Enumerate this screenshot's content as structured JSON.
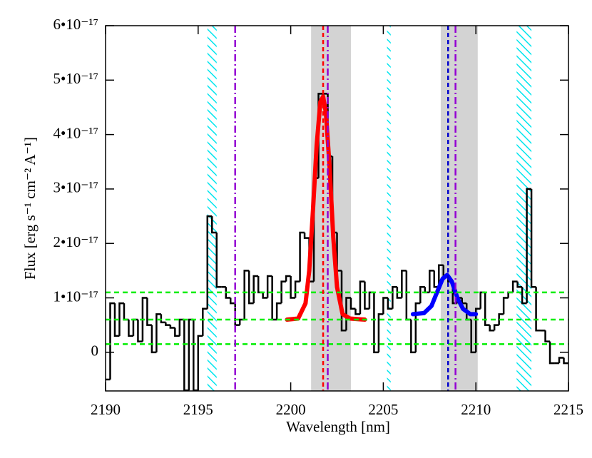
{
  "chart_data": {
    "type": "histogram",
    "xlabel": "Wavelength [nm]",
    "ylabel": "Flux [erg s⁻¹ cm⁻² A⁻¹]",
    "xlim": [
      2190,
      2215
    ],
    "ylim": [
      -7.1e-18,
      6e-17
    ],
    "xticks": [
      2190,
      2195,
      2200,
      2205,
      2210,
      2215
    ],
    "yticks": [
      0,
      {
        "value": 1e-17,
        "label": "1•10⁻¹⁷"
      },
      {
        "value": 2e-17,
        "label": "2•10⁻¹⁷"
      },
      {
        "value": 3e-17,
        "label": "3•10⁻¹⁷"
      },
      {
        "value": 4e-17,
        "label": "4•10⁻¹⁷"
      },
      {
        "value": 5e-17,
        "label": "5•10⁻¹⁷"
      },
      {
        "value": 6e-17,
        "label": "6•10⁻¹⁷"
      }
    ],
    "color": "#000000",
    "bins": [
      2190,
      2190.25,
      2190.5,
      2190.75,
      2191,
      2191.25,
      2191.5,
      2191.75,
      2192,
      2192.25,
      2192.5,
      2192.75,
      2193,
      2193.25,
      2193.5,
      2193.75,
      2194,
      2194.25,
      2194.5,
      2194.75,
      2195,
      2195.25,
      2195.5,
      2195.75,
      2196,
      2196.25,
      2196.5,
      2196.75,
      2197,
      2197.25,
      2197.5,
      2197.75,
      2198,
      2198.25,
      2198.5,
      2198.75,
      2199,
      2199.25,
      2199.5,
      2199.75,
      2200,
      2200.25,
      2200.5,
      2200.75,
      2201,
      2201.25,
      2201.5,
      2201.75,
      2202,
      2202.25,
      2202.5,
      2202.75,
      2203,
      2203.25,
      2203.5,
      2203.75,
      2204,
      2204.25,
      2204.5,
      2204.75,
      2205,
      2205.25,
      2205.5,
      2205.75,
      2206,
      2206.25,
      2206.5,
      2206.75,
      2207,
      2207.25,
      2207.5,
      2207.75,
      2208,
      2208.25,
      2208.5,
      2208.75,
      2209,
      2209.25,
      2209.5,
      2209.75,
      2210,
      2210.25,
      2210.5,
      2210.75,
      2211,
      2211.25,
      2211.5,
      2211.75,
      2212,
      2212.25,
      2212.5,
      2212.75,
      2213,
      2213.25,
      2213.5,
      2213.75,
      2214,
      2214.25,
      2214.5,
      2214.75,
      2215
    ],
    "values": [
      -5e-18,
      9e-18,
      3e-18,
      9e-18,
      6e-18,
      3e-18,
      6e-18,
      2e-18,
      1e-17,
      5e-18,
      0,
      7e-18,
      5.5e-18,
      5e-18,
      4.5e-18,
      3e-18,
      6e-18,
      -7e-18,
      6e-18,
      -7e-18,
      3e-18,
      8e-18,
      2.5e-17,
      2.2e-17,
      1.2e-17,
      1.2e-17,
      1e-17,
      9e-18,
      5e-18,
      6e-18,
      1.5e-17,
      9e-18,
      1.4e-17,
      1.1e-17,
      1e-17,
      1.4e-17,
      6e-18,
      9e-18,
      1.3e-17,
      1.4e-17,
      1e-17,
      1.3e-17,
      2.2e-17,
      2.1e-17,
      1.3e-17,
      3.2e-17,
      4.75e-17,
      4.75e-17,
      3.6e-17,
      2.2e-17,
      1.5e-17,
      4e-18,
      1e-17,
      8e-18,
      7e-18,
      1.3e-17,
      8e-18,
      1.1e-17,
      0,
      7e-18,
      1e-17,
      8e-18,
      1.2e-17,
      1e-17,
      1.5e-17,
      6e-18,
      0,
      9e-18,
      1.2e-17,
      1.1e-17,
      1.5e-17,
      1.2e-17,
      1.6e-17,
      1.4e-17,
      1.3e-17,
      9e-18,
      1e-17,
      9e-18,
      6e-18,
      0,
      8e-18,
      1.1e-17,
      5e-18,
      4e-18,
      5e-18,
      7e-18,
      1e-17,
      1.1e-17,
      1.3e-17,
      1.2e-17,
      9e-18,
      3e-17,
      1.2e-17,
      4e-18,
      4e-18,
      2e-18,
      -2e-18,
      -2e-18,
      -1e-18,
      -2e-18
    ],
    "fits": [
      {
        "color": "#ff0000",
        "x": [
          2199.8,
          2200.4,
          2200.8,
          2201,
          2201.2,
          2201.4,
          2201.6,
          2201.75,
          2201.9,
          2202.1,
          2202.3,
          2202.5,
          2202.8,
          2203.2,
          2204
        ],
        "values": [
          6e-18,
          6.2e-18,
          9e-18,
          1.5e-17,
          2.6e-17,
          3.8e-17,
          4.6e-17,
          4.7e-17,
          4.4e-17,
          3.4e-17,
          2.1e-17,
          1.2e-17,
          7e-18,
          6.2e-18,
          6e-18
        ]
      },
      {
        "color": "#0000ff",
        "x": [
          2206.6,
          2207.2,
          2207.6,
          2207.9,
          2208.2,
          2208.45,
          2208.7,
          2209,
          2209.3,
          2209.7,
          2210
        ],
        "values": [
          7e-18,
          7.2e-18,
          8.5e-18,
          1.1e-17,
          1.35e-17,
          1.42e-17,
          1.3e-17,
          1e-17,
          8e-18,
          7e-18,
          7e-18
        ]
      }
    ],
    "bands": [
      {
        "range": [
          2201.1,
          2203.25
        ],
        "color": "#d3d3d3"
      },
      {
        "range": [
          2208.1,
          2210.1
        ],
        "color": "#d3d3d3"
      }
    ],
    "hatched_bands": [
      {
        "range": [
          2195.5,
          2196
        ],
        "color": "#00e5ee"
      },
      {
        "range": [
          2205.2,
          2205.4
        ],
        "color": "#00e5ee"
      },
      {
        "range": [
          2212.2,
          2213
        ],
        "color": "#00e5ee"
      }
    ],
    "hlines": [
      {
        "value": 1.1e-17,
        "color": "#00ee00"
      },
      {
        "value": 6e-18,
        "color": "#00ee00"
      },
      {
        "value": 1.5e-18,
        "color": "#00ee00"
      }
    ],
    "vlines": [
      {
        "value": 2197,
        "color": "#9400d3",
        "style": "dashdot"
      },
      {
        "value": 2201.75,
        "color": "#ff0000",
        "style": "dashed"
      },
      {
        "value": 2202,
        "color": "#9400d3",
        "style": "dashdot"
      },
      {
        "value": 2208.5,
        "color": "#0000cd",
        "style": "dashed"
      },
      {
        "value": 2208.9,
        "color": "#9400d3",
        "style": "dashdot"
      }
    ]
  }
}
